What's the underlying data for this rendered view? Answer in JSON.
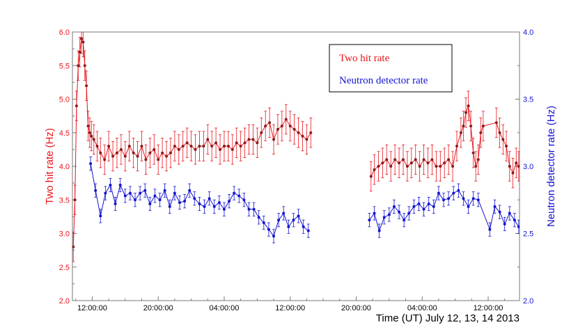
{
  "chart_data": {
    "type": "line",
    "title": "",
    "xlabel": "Time (UT) July 12, 13, 14 2013",
    "x_ticks": [
      "12:00:00",
      "20:00:00",
      "04:00:00",
      "12:00:00",
      "20:00:00",
      "04:00:00",
      "12:00:00"
    ],
    "x_tick_hours": [
      12,
      20,
      28,
      36,
      44,
      52,
      60
    ],
    "xlim_hours": [
      9.6,
      63.8
    ],
    "left_axis": {
      "label": "Two hit rate (Hz)",
      "ylim": [
        2.0,
        6.0
      ],
      "ticks": [
        "2.0",
        "2.5",
        "3.0",
        "3.5",
        "4.0",
        "4.5",
        "5.0",
        "5.5",
        "6.0"
      ],
      "color": "#e8141c"
    },
    "right_axis": {
      "label": "Neutron detector rate (Hz)",
      "ylim": [
        2.0,
        4.0
      ],
      "ticks": [
        "2.0",
        "2.5",
        "3.0",
        "3.5",
        "4.0"
      ],
      "color": "#1414d2"
    },
    "legend": {
      "placement": "top-right",
      "items": [
        "Two hit rate",
        "Neutron detector rate"
      ]
    },
    "series": [
      {
        "name": "Two hit rate",
        "axis": "left",
        "color": "#e8141c",
        "marker_color": "#8b1a1a",
        "error": 0.22,
        "x": [
          9.7,
          9.9,
          10.1,
          10.3,
          10.5,
          10.7,
          10.9,
          11.1,
          11.3,
          11.5,
          11.7,
          11.9,
          12.2,
          12.6,
          13.0,
          13.5,
          14.0,
          14.5,
          15.0,
          15.5,
          16.0,
          16.5,
          17.0,
          17.5,
          18.0,
          18.5,
          19.0,
          19.5,
          20.0,
          20.5,
          21.0,
          21.5,
          22.0,
          22.5,
          23.0,
          23.5,
          24.0,
          24.5,
          25.0,
          25.5,
          26.0,
          26.5,
          27.0,
          27.5,
          28.0,
          28.5,
          29.0,
          29.5,
          30.0,
          30.5,
          31.0,
          31.5,
          32.0,
          32.5,
          33.0,
          33.5,
          34.0,
          34.5,
          35.0,
          35.5,
          36.0,
          36.5,
          37.0,
          37.5,
          38.0,
          38.5,
          45.8,
          46.2,
          46.7,
          47.2,
          47.7,
          48.2,
          48.7,
          49.2,
          49.7,
          50.2,
          50.7,
          51.2,
          51.7,
          52.2,
          52.7,
          53.2,
          53.7,
          54.2,
          54.7,
          55.2,
          55.7,
          56.2,
          56.7,
          57.0,
          57.3,
          57.6,
          57.9,
          58.2,
          58.5,
          58.8,
          59.1,
          59.4,
          61.0,
          61.4,
          61.8,
          62.2,
          62.6,
          63.0,
          63.4,
          63.7
        ],
        "values": [
          2.8,
          3.5,
          4.9,
          5.5,
          5.7,
          5.9,
          5.85,
          5.5,
          5.2,
          4.6,
          4.5,
          4.45,
          4.4,
          4.3,
          4.2,
          4.1,
          4.3,
          4.15,
          4.2,
          4.25,
          4.15,
          4.3,
          4.2,
          4.15,
          4.3,
          4.1,
          4.2,
          4.25,
          4.1,
          4.2,
          4.15,
          4.2,
          4.3,
          4.25,
          4.3,
          4.35,
          4.3,
          4.25,
          4.3,
          4.3,
          4.4,
          4.3,
          4.35,
          4.25,
          4.3,
          4.3,
          4.25,
          4.35,
          4.3,
          4.35,
          4.4,
          4.4,
          4.35,
          4.5,
          4.6,
          4.65,
          4.4,
          4.55,
          4.6,
          4.7,
          4.6,
          4.55,
          4.5,
          4.45,
          4.4,
          4.5,
          3.85,
          3.95,
          4.0,
          4.05,
          4.1,
          4.0,
          4.1,
          4.05,
          4.1,
          4.0,
          4.05,
          4.1,
          4.0,
          4.1,
          4.05,
          4.1,
          4.0,
          4.0,
          4.05,
          4.1,
          4.0,
          4.3,
          4.5,
          4.6,
          4.8,
          4.9,
          4.6,
          4.2,
          4.0,
          4.1,
          4.5,
          4.6,
          4.65,
          4.5,
          4.4,
          4.3,
          4.0,
          3.9,
          4.05,
          4.0
        ]
      },
      {
        "name": "Neutron detector rate",
        "axis": "right",
        "color": "#1414d2",
        "error": 0.05,
        "x": [
          11.8,
          12.4,
          13.0,
          13.6,
          14.2,
          14.8,
          15.4,
          16.0,
          16.6,
          17.2,
          17.8,
          18.4,
          19.0,
          19.6,
          20.2,
          20.8,
          21.4,
          22.0,
          22.6,
          23.2,
          23.8,
          24.4,
          25.0,
          25.6,
          26.2,
          26.8,
          27.4,
          28.0,
          28.6,
          29.2,
          29.8,
          30.4,
          31.0,
          31.6,
          32.2,
          32.8,
          33.4,
          34.0,
          34.6,
          35.2,
          35.8,
          36.4,
          37.0,
          37.6,
          38.2,
          45.6,
          46.2,
          46.8,
          47.4,
          48.0,
          48.6,
          49.2,
          49.8,
          50.4,
          51.0,
          51.6,
          52.2,
          52.8,
          53.4,
          54.0,
          54.6,
          55.2,
          55.8,
          56.4,
          57.0,
          57.6,
          58.2,
          58.8,
          60.2,
          60.8,
          61.4,
          62.0,
          62.6,
          63.2,
          63.7
        ],
        "values": [
          3.02,
          2.82,
          2.63,
          2.8,
          2.86,
          2.72,
          2.86,
          2.78,
          2.8,
          2.75,
          2.8,
          2.82,
          2.72,
          2.78,
          2.75,
          2.82,
          2.7,
          2.8,
          2.73,
          2.74,
          2.82,
          2.76,
          2.72,
          2.7,
          2.76,
          2.7,
          2.73,
          2.68,
          2.74,
          2.8,
          2.78,
          2.75,
          2.68,
          2.68,
          2.62,
          2.58,
          2.53,
          2.48,
          2.6,
          2.65,
          2.55,
          2.6,
          2.63,
          2.55,
          2.52,
          2.6,
          2.65,
          2.52,
          2.62,
          2.64,
          2.7,
          2.66,
          2.6,
          2.65,
          2.7,
          2.72,
          2.68,
          2.72,
          2.7,
          2.8,
          2.75,
          2.76,
          2.8,
          2.82,
          2.76,
          2.7,
          2.76,
          2.75,
          2.53,
          2.7,
          2.66,
          2.57,
          2.65,
          2.6,
          2.55
        ]
      }
    ]
  }
}
